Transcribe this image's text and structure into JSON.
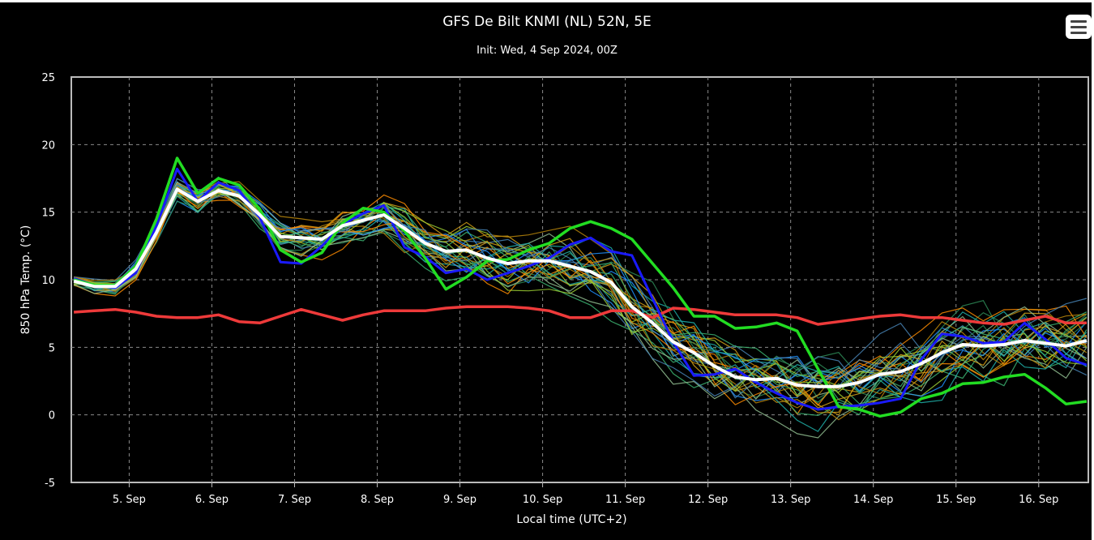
{
  "title": "GFS De Bilt KNMI (NL) 52N, 5E",
  "subtitle": "Init: Wed, 4 Sep 2024, 00Z",
  "menu_icon": "hamburger-menu-icon",
  "colors": {
    "background": "#000000",
    "grid": "#8a8a8a",
    "plot_border": "#bbbbbb",
    "mean": "#ffffff",
    "control_run": "#22dd22",
    "operational_run": "#1a1aff",
    "climatology": "#ee3a3a",
    "ensemble_palette": [
      "#1e90ff",
      "#2e8b57",
      "#d4a017",
      "#ff8c00",
      "#20b2aa",
      "#8fbc8f",
      "#b8860b",
      "#3cb371",
      "#4682b4",
      "#9acd32"
    ]
  },
  "chart_data": {
    "type": "line",
    "title": "GFS De Bilt KNMI (NL) 52N, 5E",
    "subtitle": "Init: Wed, 4 Sep 2024, 00Z",
    "xlabel": "Local time (UTC+2)",
    "ylabel": "850 hPa Temp. (°C)",
    "ylim": [
      -5,
      25
    ],
    "yticks": [
      "-5",
      "0",
      "5",
      "10",
      "15",
      "20",
      "25"
    ],
    "xlim": [
      4.3,
      16.6
    ],
    "xticks": [
      {
        "x": 5,
        "label": "5. Sep"
      },
      {
        "x": 6,
        "label": "6. Sep"
      },
      {
        "x": 7,
        "label": "7. Sep"
      },
      {
        "x": 8,
        "label": "8. Sep"
      },
      {
        "x": 9,
        "label": "9. Sep"
      },
      {
        "x": 10,
        "label": "10. Sep"
      },
      {
        "x": 11,
        "label": "11. Sep"
      },
      {
        "x": 12,
        "label": "12. Sep"
      },
      {
        "x": 13,
        "label": "13. Sep"
      },
      {
        "x": 14,
        "label": "14. Sep"
      },
      {
        "x": 15,
        "label": "15. Sep"
      },
      {
        "x": 16,
        "label": "16. Sep"
      }
    ],
    "grid": true,
    "legend": "none",
    "x": [
      4.33,
      4.58,
      4.83,
      5.08,
      5.33,
      5.58,
      5.83,
      6.08,
      6.33,
      6.58,
      6.83,
      7.08,
      7.33,
      7.58,
      7.83,
      8.08,
      8.33,
      8.58,
      8.83,
      9.08,
      9.33,
      9.58,
      9.83,
      10.08,
      10.33,
      10.58,
      10.83,
      11.08,
      11.33,
      11.58,
      11.83,
      12.08,
      12.33,
      12.58,
      12.83,
      13.08,
      13.33,
      13.58,
      13.83,
      14.08,
      14.33,
      14.58,
      14.83,
      15.08,
      15.33,
      15.58,
      15.83,
      16.08,
      16.33,
      16.58
    ],
    "series": [
      {
        "role": "mean",
        "values": [
          9.9,
          9.5,
          9.5,
          10.8,
          13.5,
          16.7,
          15.8,
          16.6,
          16.2,
          14.8,
          13.2,
          13.1,
          13.0,
          14.0,
          14.4,
          14.8,
          13.8,
          12.7,
          12.1,
          12.2,
          11.6,
          11.2,
          11.4,
          11.4,
          11.0,
          10.6,
          9.8,
          8.0,
          6.8,
          5.4,
          4.6,
          3.6,
          2.8,
          2.6,
          2.7,
          2.2,
          2.1,
          2.1,
          2.4,
          3.0,
          3.2,
          3.8,
          4.6,
          5.2,
          5.1,
          5.2,
          5.5,
          5.3,
          5.1,
          5.5
        ]
      },
      {
        "role": "control_run",
        "values": [
          10.0,
          9.6,
          9.6,
          11.0,
          14.5,
          19.0,
          16.4,
          17.5,
          17.0,
          15.2,
          12.2,
          11.3,
          12.0,
          14.2,
          15.3,
          15.0,
          13.6,
          11.6,
          9.3,
          10.2,
          11.4,
          11.5,
          12.2,
          12.7,
          13.8,
          14.3,
          13.8,
          13.0,
          11.2,
          9.4,
          7.3,
          7.3,
          6.4,
          6.5,
          6.8,
          6.2,
          3.4,
          0.6,
          0.4,
          -0.1,
          0.2,
          1.2,
          1.6,
          2.3,
          2.4,
          2.8,
          3.0,
          2.0,
          0.8,
          1.0
        ]
      },
      {
        "role": "operational_run",
        "values": [
          10.1,
          9.6,
          9.4,
          10.5,
          14.0,
          18.2,
          15.8,
          17.2,
          16.6,
          14.6,
          11.3,
          11.2,
          12.5,
          14.1,
          14.9,
          15.5,
          12.4,
          11.7,
          10.5,
          10.8,
          10.0,
          10.5,
          11.0,
          11.6,
          12.6,
          13.1,
          12.1,
          11.8,
          8.6,
          5.4,
          2.9,
          3.0,
          3.4,
          2.4,
          1.6,
          0.9,
          0.4,
          0.6,
          0.7,
          0.9,
          1.2,
          4.1,
          6.0,
          5.8,
          5.3,
          5.4,
          6.8,
          5.6,
          4.2,
          3.7
        ]
      },
      {
        "role": "climatology",
        "values": [
          7.6,
          7.7,
          7.8,
          7.6,
          7.3,
          7.2,
          7.2,
          7.4,
          6.9,
          6.8,
          7.3,
          7.8,
          7.4,
          7.0,
          7.4,
          7.7,
          7.7,
          7.7,
          7.9,
          8.0,
          8.0,
          8.0,
          7.9,
          7.7,
          7.2,
          7.2,
          7.7,
          7.7,
          7.2,
          7.9,
          7.8,
          7.6,
          7.4,
          7.4,
          7.4,
          7.2,
          6.7,
          6.9,
          7.1,
          7.3,
          7.4,
          7.2,
          7.2,
          7.0,
          6.8,
          6.7,
          7.0,
          7.3,
          6.8,
          6.8
        ]
      }
    ],
    "ensemble_members": 30
  }
}
